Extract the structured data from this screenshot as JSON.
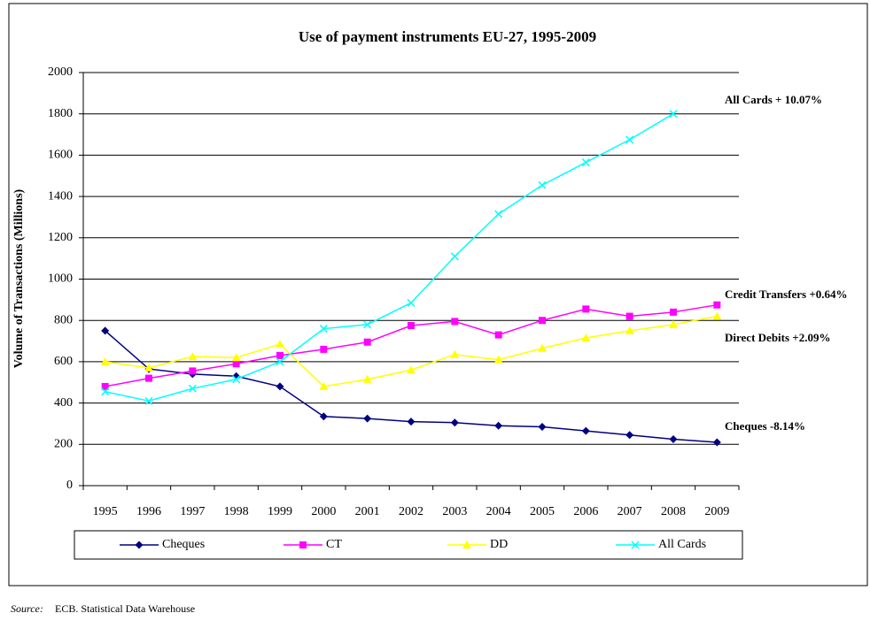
{
  "chart_data": {
    "type": "line",
    "title": "Use of payment instruments EU-27, 1995-2009",
    "ylabel": "Volume of Transactions (Millions)",
    "categories": [
      "1995",
      "1996",
      "1997",
      "1998",
      "1999",
      "2000",
      "2001",
      "2002",
      "2003",
      "2004",
      "2005",
      "2006",
      "2007",
      "2008",
      "2009"
    ],
    "series": [
      {
        "name": "Cheques",
        "color": "#000080",
        "marker": "diamond",
        "values": [
          750,
          565,
          540,
          530,
          480,
          335,
          325,
          310,
          305,
          290,
          285,
          265,
          245,
          225,
          210
        ]
      },
      {
        "name": "CT",
        "color": "#ff00ff",
        "marker": "square",
        "values": [
          480,
          520,
          555,
          590,
          630,
          660,
          695,
          775,
          795,
          730,
          800,
          855,
          820,
          840,
          875
        ]
      },
      {
        "name": "DD",
        "color": "#ffff00",
        "marker": "triangle",
        "values": [
          600,
          570,
          625,
          620,
          685,
          480,
          515,
          560,
          635,
          610,
          665,
          715,
          750,
          780,
          820
        ]
      },
      {
        "name": "All Cards",
        "color": "#00ffff",
        "marker": "x",
        "values": [
          455,
          410,
          470,
          515,
          600,
          760,
          780,
          885,
          1110,
          1315,
          1455,
          1565,
          1675,
          1800,
          null
        ]
      }
    ],
    "annotations": [
      "All Cards + 10.07%",
      "Credit Transfers +0.64%",
      "Direct Debits +2.09%",
      "Cheques -8.14%"
    ],
    "ylim": [
      0,
      2000
    ],
    "yticks": [
      0,
      200,
      400,
      600,
      800,
      1000,
      1200,
      1400,
      1600,
      1800,
      2000
    ],
    "grid": true,
    "source_label": "Source:",
    "source": "ECB. Statistical Data Warehouse"
  }
}
